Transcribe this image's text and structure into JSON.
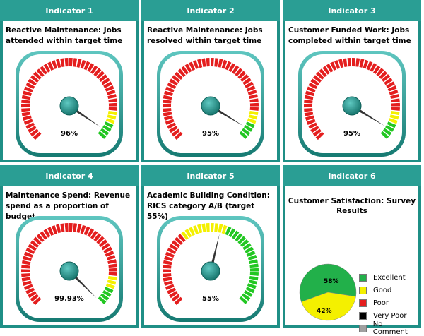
{
  "indicators": [
    {
      "header": "Indicator 1",
      "title": "Reactive Maintenance: Jobs attended within target time",
      "value_text": "96%",
      "value": 96
    },
    {
      "header": "Indicator 2",
      "title": "Reactive Maintenance: Jobs resolved within target time",
      "value_text": "95%",
      "value": 95
    },
    {
      "header": "Indicator 3",
      "title": "Customer Funded Work: Jobs completed within target time",
      "value_text": "95%",
      "value": 95
    },
    {
      "header": "Indicator 4",
      "title": "Maintenance Spend: Revenue spend as a proportion of budget",
      "value_text": "99.93%",
      "value": 99.93
    },
    {
      "header": "Indicator 5",
      "title": "Academic Building Condition: RICS category A/B (target 55%)",
      "value_text": "55%",
      "value": 55
    },
    {
      "header": "Indicator 6",
      "title": "Customer Satisfaction: Survey Results"
    }
  ],
  "colors": {
    "panel": "#1f8f86",
    "red": "#e41e1e",
    "yellow": "#f4f000",
    "green": "#22c722",
    "excellent": "#22b04a",
    "good": "#f4f000",
    "poor": "#e41e1e",
    "very_poor": "#000000",
    "no_comment": "#a0a0a0"
  },
  "chart_data": {
    "type": "pie",
    "slices": [
      {
        "label": "Excellent",
        "value": 58,
        "value_text": "58%"
      },
      {
        "label": "Good",
        "value": 42,
        "value_text": "42%"
      }
    ],
    "legend": [
      "Excellent",
      "Good",
      "Poor",
      "Very Poor",
      "No Comment"
    ]
  }
}
